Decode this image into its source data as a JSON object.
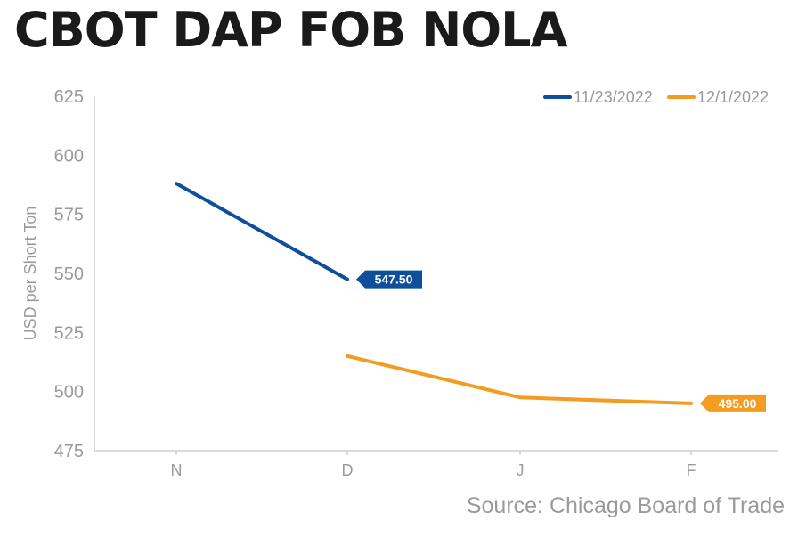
{
  "title": "CBOT DAP FOB NOLA",
  "source": "Source: Chicago Board of Trade",
  "chart_data": {
    "type": "line",
    "categories": [
      "N",
      "D",
      "J",
      "F"
    ],
    "ylabel": "USD per Short Ton",
    "ylim": [
      475,
      625
    ],
    "yticks": [
      475,
      500,
      525,
      550,
      575,
      600,
      625
    ],
    "grid": false,
    "legend_position": "top-right",
    "series": [
      {
        "name": "11/23/2022",
        "color": "#0d4f9c",
        "values": [
          588,
          547.5,
          null,
          null
        ],
        "end_label": "547.50"
      },
      {
        "name": "12/1/2022",
        "color": "#f39c22",
        "values": [
          null,
          515,
          497.5,
          495
        ],
        "end_label": "495.00"
      }
    ]
  }
}
